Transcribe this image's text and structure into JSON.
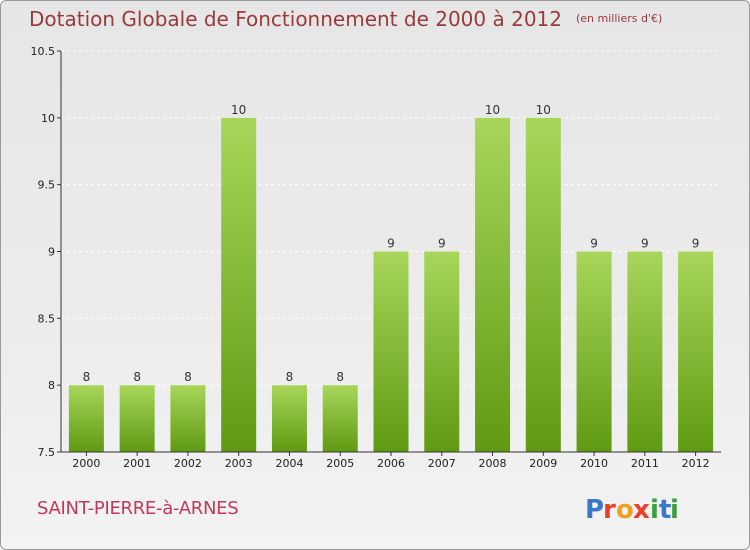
{
  "title": "Dotation Globale de Fonctionnement de 2000 à 2012",
  "subtitle": "(en milliers d'€)",
  "commune": "SAINT-PIERRE-à-ARNES",
  "logo": {
    "text": "Proxiti",
    "colors": [
      "#3b78c8",
      "#e8402a",
      "#f0a020",
      "#3aa13a"
    ]
  },
  "colors": {
    "bar_light": "#a8d65a",
    "bar_dark": "#5f9a12",
    "axis": "#333333",
    "grid": "#ffffff"
  },
  "chart_data": {
    "type": "bar",
    "categories": [
      "2000",
      "2001",
      "2002",
      "2003",
      "2004",
      "2005",
      "2006",
      "2007",
      "2008",
      "2009",
      "2010",
      "2011",
      "2012"
    ],
    "values": [
      8,
      8,
      8,
      10,
      8,
      8,
      9,
      9,
      10,
      10,
      9,
      9,
      9
    ],
    "data_labels": [
      "8",
      "8",
      "8",
      "10",
      "8",
      "8",
      "9",
      "9",
      "10",
      "10",
      "9",
      "9",
      "9"
    ],
    "ylim": [
      7.5,
      10.5
    ],
    "yticks": [
      7.5,
      8,
      8.5,
      9,
      9.5,
      10,
      10.5
    ],
    "ytick_labels": [
      "7.5",
      "8",
      "8.5",
      "9",
      "9.5",
      "10",
      "10.5"
    ],
    "grid": true,
    "xlabel": "",
    "ylabel": ""
  }
}
